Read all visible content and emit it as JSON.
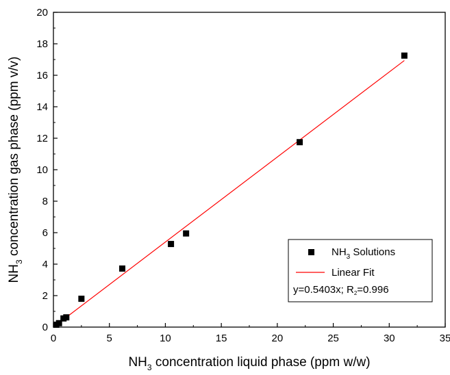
{
  "chart_data": {
    "type": "scatter",
    "xlabel": {
      "prefix": "NH",
      "sub": "3",
      "rest": " concentration liquid phase (ppm w/w)"
    },
    "ylabel": {
      "prefix": "NH",
      "sub": "3",
      "rest": " concentration gas phase (ppm v/v)"
    },
    "xlim": [
      0,
      35
    ],
    "ylim": [
      0,
      20
    ],
    "xticks": [
      0,
      5,
      10,
      15,
      20,
      25,
      30,
      35
    ],
    "yticks": [
      0,
      2,
      4,
      6,
      8,
      10,
      12,
      14,
      16,
      18,
      20
    ],
    "x_tick_labels": [
      "0",
      "5",
      "10",
      "15",
      "20",
      "25",
      "30",
      "35"
    ],
    "y_tick_labels": [
      "0",
      "2",
      "4",
      "6",
      "8",
      "10",
      "12",
      "14",
      "16",
      "18",
      "20"
    ],
    "grid": false,
    "legend_position": "bottom-right",
    "series": [
      {
        "name": {
          "prefix": "NH",
          "sub": "3",
          "rest": " Solutions"
        },
        "marker": "square",
        "color": "#000000",
        "points": [
          {
            "x": 0.25,
            "y": 0.15
          },
          {
            "x": 0.5,
            "y": 0.25
          },
          {
            "x": 0.9,
            "y": 0.55
          },
          {
            "x": 1.15,
            "y": 0.62
          },
          {
            "x": 2.5,
            "y": 1.8
          },
          {
            "x": 6.15,
            "y": 3.72
          },
          {
            "x": 10.5,
            "y": 5.28
          },
          {
            "x": 11.85,
            "y": 5.95
          },
          {
            "x": 22.0,
            "y": 11.75
          },
          {
            "x": 31.35,
            "y": 17.25
          }
        ]
      },
      {
        "name": "Linear Fit",
        "type": "line",
        "color": "#ff0000",
        "slope": 0.5403,
        "x_range": [
          0.25,
          31.35
        ]
      }
    ],
    "annotation": {
      "text_a": "y=0.5403x; R",
      "text_sub": "2",
      "text_b": "=0.996"
    }
  }
}
